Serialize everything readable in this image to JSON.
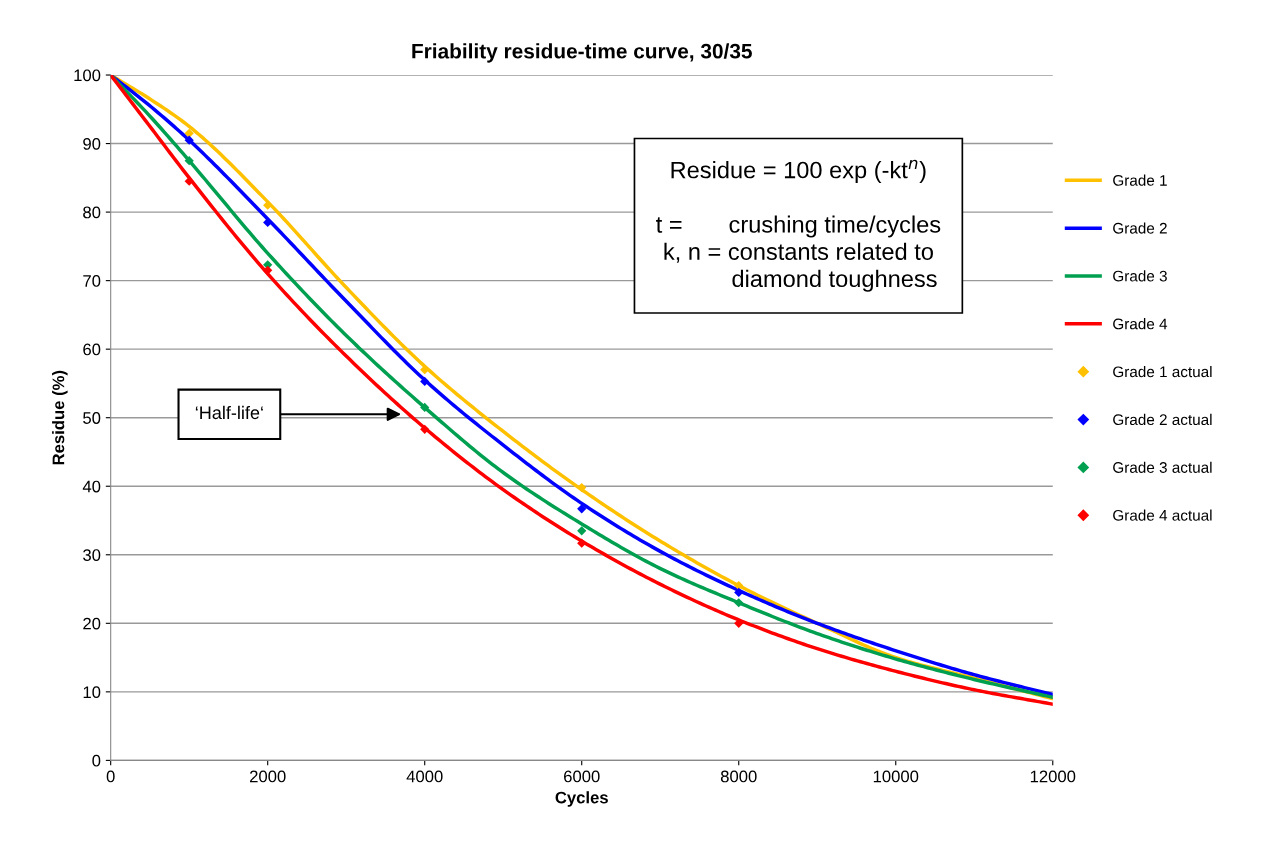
{
  "chart_data": {
    "type": "line",
    "title": "Friability residue-time curve, 30/35",
    "xlabel": "Cycles",
    "ylabel": "Residue (%)",
    "x": [
      0,
      500,
      1000,
      2000,
      3000,
      4000,
      5000,
      6000,
      7000,
      8000,
      9000,
      10000,
      11000,
      12000
    ],
    "series": [
      {
        "name": "Grade 1",
        "color": "#ffc000",
        "values": [
          100,
          96.5,
          92.5,
          81.5,
          69,
          57.5,
          48,
          39.5,
          32,
          25.5,
          20,
          15,
          12,
          9
        ]
      },
      {
        "name": "Grade 2",
        "color": "#0000ff",
        "values": [
          100,
          95.5,
          90.5,
          79,
          67,
          55.5,
          46,
          37.5,
          30.5,
          24.8,
          20,
          16,
          12.5,
          9.6
        ]
      },
      {
        "name": "Grade 3",
        "color": "#00a050",
        "values": [
          100,
          94,
          87.5,
          74,
          62,
          51.5,
          42,
          34.5,
          28,
          23,
          18.5,
          14.8,
          11.8,
          9.2
        ]
      },
      {
        "name": "Grade 4",
        "color": "#ff0000",
        "values": [
          100,
          92.5,
          85,
          71,
          59,
          48.5,
          39.5,
          32,
          25.7,
          20.5,
          16.3,
          13,
          10.3,
          8.2
        ]
      },
      {
        "name": "Grade 1 actual",
        "type": "scatter",
        "marker": "diamond",
        "color": "#ffc000",
        "x": [
          1000,
          2000,
          4000,
          6000,
          8000
        ],
        "values": [
          91.5,
          81,
          57,
          39.8,
          25.5
        ]
      },
      {
        "name": "Grade 2 actual",
        "type": "scatter",
        "marker": "diamond",
        "color": "#0000ff",
        "x": [
          1000,
          2000,
          4000,
          6000,
          8000
        ],
        "values": [
          90.5,
          78.5,
          55.3,
          36.7,
          24.5
        ]
      },
      {
        "name": "Grade 3 actual",
        "type": "scatter",
        "marker": "diamond",
        "color": "#00a050",
        "x": [
          1000,
          2000,
          4000,
          6000,
          8000
        ],
        "values": [
          87.5,
          72.3,
          51.5,
          33.5,
          23
        ]
      },
      {
        "name": "Grade 4 actual",
        "type": "scatter",
        "marker": "diamond",
        "color": "#ff0000",
        "x": [
          1000,
          2000,
          4000,
          6000,
          8000
        ],
        "values": [
          84.5,
          71.5,
          48.3,
          31.7,
          20
        ]
      }
    ],
    "xlim": [
      0,
      12000
    ],
    "xticks": [
      0,
      2000,
      4000,
      6000,
      8000,
      10000,
      12000
    ],
    "ylim": [
      0,
      100
    ],
    "yticks": [
      0,
      10,
      20,
      30,
      40,
      50,
      60,
      70,
      80,
      90,
      100
    ],
    "grid": "y",
    "legend": "right",
    "line_style": "solid",
    "annotations": [
      "Residue = 100 exp (-kt$^{n}$)\n\nt =       crushing time/cycles\nk, n = constants related to\n           diamond toughness",
      {
        "text": "‘Half-life‘",
        "x": 3700,
        "y": 50.5
      }
    ]
  }
}
